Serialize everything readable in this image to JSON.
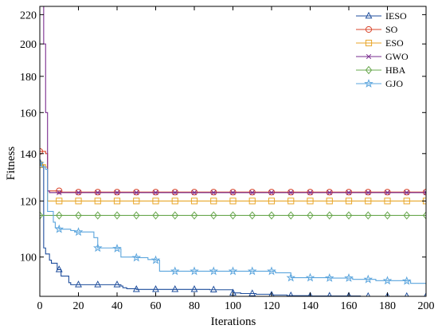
{
  "chart_data": {
    "type": "line",
    "title": "",
    "xlabel": "Iterations",
    "ylabel": "Fitness",
    "xlim": [
      0,
      200
    ],
    "ylim": [
      88,
      226
    ],
    "y_scale": "log",
    "x_ticks": [
      0,
      20,
      40,
      60,
      80,
      100,
      120,
      140,
      160,
      180,
      200
    ],
    "y_ticks": [
      100,
      120,
      140,
      160,
      180,
      200,
      220
    ],
    "grid": false,
    "legend_position": "top-right",
    "series": [
      {
        "name": "IESO",
        "color": "#1f4e9c",
        "marker": "triangle",
        "steps": [
          [
            0,
            136
          ],
          [
            1,
            135
          ],
          [
            2,
            103
          ],
          [
            3,
            101
          ],
          [
            5,
            99
          ],
          [
            6,
            98
          ],
          [
            9,
            96
          ],
          [
            11,
            94
          ],
          [
            15,
            92
          ],
          [
            16,
            91.4
          ],
          [
            42,
            91
          ],
          [
            43,
            90.5
          ],
          [
            45,
            90.2
          ],
          [
            50,
            90
          ],
          [
            88,
            89.9
          ],
          [
            100,
            89
          ],
          [
            104,
            88.8
          ],
          [
            112,
            88.6
          ],
          [
            120,
            88.4
          ],
          [
            128,
            88.2
          ],
          [
            140,
            88.1
          ],
          [
            166,
            88
          ],
          [
            200,
            88
          ]
        ],
        "marker_x": [
          0,
          10,
          20,
          30,
          40,
          50,
          60,
          70,
          80,
          90,
          100,
          110,
          120,
          130,
          140,
          150,
          160,
          170,
          180,
          190,
          200
        ]
      },
      {
        "name": "SO",
        "color": "#d9452b",
        "marker": "circle",
        "steps": [
          [
            0,
            141
          ],
          [
            1,
            141
          ],
          [
            3,
            140
          ],
          [
            4,
            124
          ],
          [
            10,
            124
          ],
          [
            11,
            123.5
          ],
          [
            200,
            123.5
          ]
        ],
        "marker_x": [
          0,
          10,
          20,
          30,
          40,
          50,
          60,
          70,
          80,
          90,
          100,
          110,
          120,
          130,
          140,
          150,
          160,
          170,
          180,
          190,
          200
        ]
      },
      {
        "name": "ESO",
        "color": "#e8a628",
        "marker": "square",
        "steps": [
          [
            0,
            135
          ],
          [
            1,
            135
          ],
          [
            3,
            134
          ],
          [
            4,
            120
          ],
          [
            200,
            120
          ]
        ],
        "marker_x": [
          0,
          10,
          20,
          30,
          40,
          50,
          60,
          70,
          80,
          90,
          100,
          110,
          120,
          130,
          140,
          150,
          160,
          170,
          180,
          190,
          200
        ]
      },
      {
        "name": "GWO",
        "color": "#7a2d8f",
        "marker": "x",
        "steps": [
          [
            0,
            226
          ],
          [
            1,
            226
          ],
          [
            2,
            200
          ],
          [
            3,
            160
          ],
          [
            4,
            124
          ],
          [
            5,
            123.3
          ],
          [
            200,
            123.3
          ]
        ],
        "marker_x": [
          10,
          20,
          30,
          40,
          50,
          60,
          70,
          80,
          90,
          100,
          110,
          120,
          130,
          140,
          150,
          160,
          170,
          180,
          190,
          200
        ]
      },
      {
        "name": "HBA",
        "color": "#6aa84f",
        "marker": "diamond",
        "steps": [
          [
            0,
            114.5
          ],
          [
            200,
            114.5
          ]
        ],
        "marker_x": [
          0,
          10,
          20,
          30,
          40,
          50,
          60,
          70,
          80,
          90,
          100,
          110,
          120,
          130,
          140,
          150,
          160,
          170,
          180,
          190,
          200
        ]
      },
      {
        "name": "GJO",
        "color": "#5ba5dd",
        "marker": "star",
        "steps": [
          [
            0,
            135.5
          ],
          [
            1,
            134
          ],
          [
            3,
            133
          ],
          [
            4,
            116
          ],
          [
            7,
            112
          ],
          [
            8,
            110
          ],
          [
            10,
            109.5
          ],
          [
            16,
            109
          ],
          [
            18,
            108.5
          ],
          [
            28,
            106.5
          ],
          [
            30,
            103
          ],
          [
            40,
            102.8
          ],
          [
            42,
            100
          ],
          [
            50,
            99.8
          ],
          [
            56,
            99.2
          ],
          [
            60,
            99
          ],
          [
            62,
            95.5
          ],
          [
            110,
            95.5
          ],
          [
            122,
            95
          ],
          [
            130,
            93.5
          ],
          [
            150,
            93.4
          ],
          [
            162,
            93
          ],
          [
            174,
            92.6
          ],
          [
            190,
            92.5
          ],
          [
            192,
            91.8
          ],
          [
            200,
            91.4
          ]
        ],
        "marker_x": [
          0,
          10,
          20,
          30,
          40,
          50,
          60,
          70,
          80,
          90,
          100,
          110,
          120,
          130,
          140,
          150,
          160,
          170,
          180,
          190
        ]
      }
    ]
  }
}
